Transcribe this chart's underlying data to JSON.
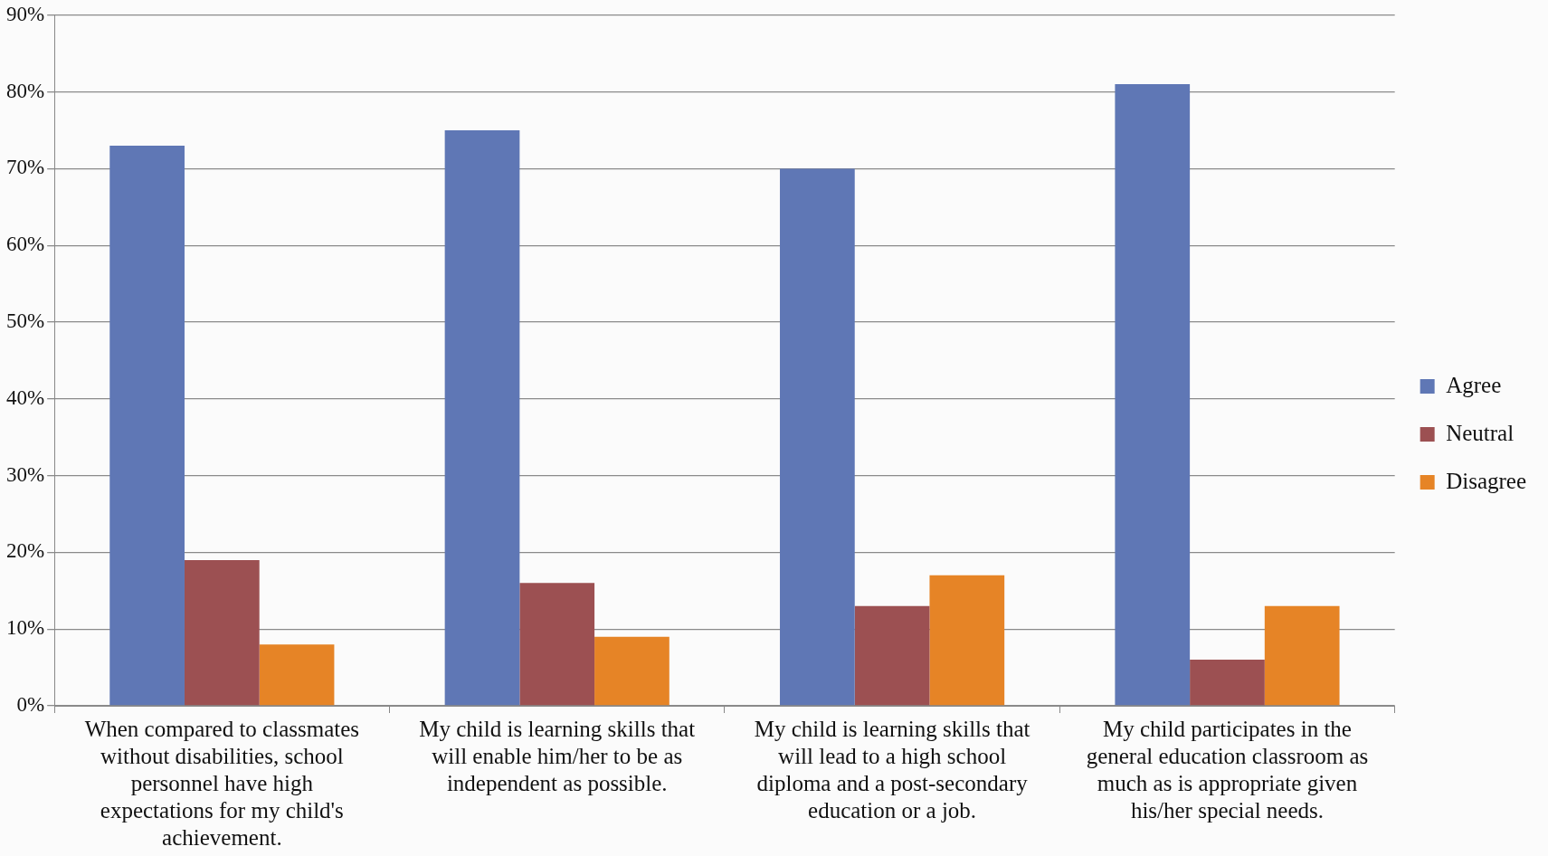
{
  "chart_data": {
    "type": "bar",
    "categories": [
      "When compared to classmates without disabilities, school personnel have high expectations for my child's achievement.",
      "My child is learning skills that will enable him/her to be as independent as possible.",
      "My child is learning skills that will lead to a high school diploma and a post-secondary education or a job.",
      "My child participates in the general education classroom as much as is appropriate given his/her special needs."
    ],
    "series": [
      {
        "name": "Agree",
        "color": "#5f77b5",
        "values": [
          73,
          75,
          70,
          81
        ]
      },
      {
        "name": "Neutral",
        "color": "#9c5052",
        "values": [
          19,
          16,
          13,
          6
        ]
      },
      {
        "name": "Disagree",
        "color": "#e68426",
        "values": [
          8,
          9,
          17,
          13
        ]
      }
    ],
    "ylim": [
      0,
      90
    ],
    "yticks": [
      {
        "value": 0,
        "label": "0%"
      },
      {
        "value": 10,
        "label": "10%"
      },
      {
        "value": 20,
        "label": "20%"
      },
      {
        "value": 30,
        "label": "30%"
      },
      {
        "value": 40,
        "label": "40%"
      },
      {
        "value": 50,
        "label": "50%"
      },
      {
        "value": 60,
        "label": "60%"
      },
      {
        "value": 70,
        "label": "70%"
      },
      {
        "value": 80,
        "label": "80%"
      },
      {
        "value": 90,
        "label": "90%"
      }
    ],
    "grid": "y",
    "legend": "right"
  }
}
